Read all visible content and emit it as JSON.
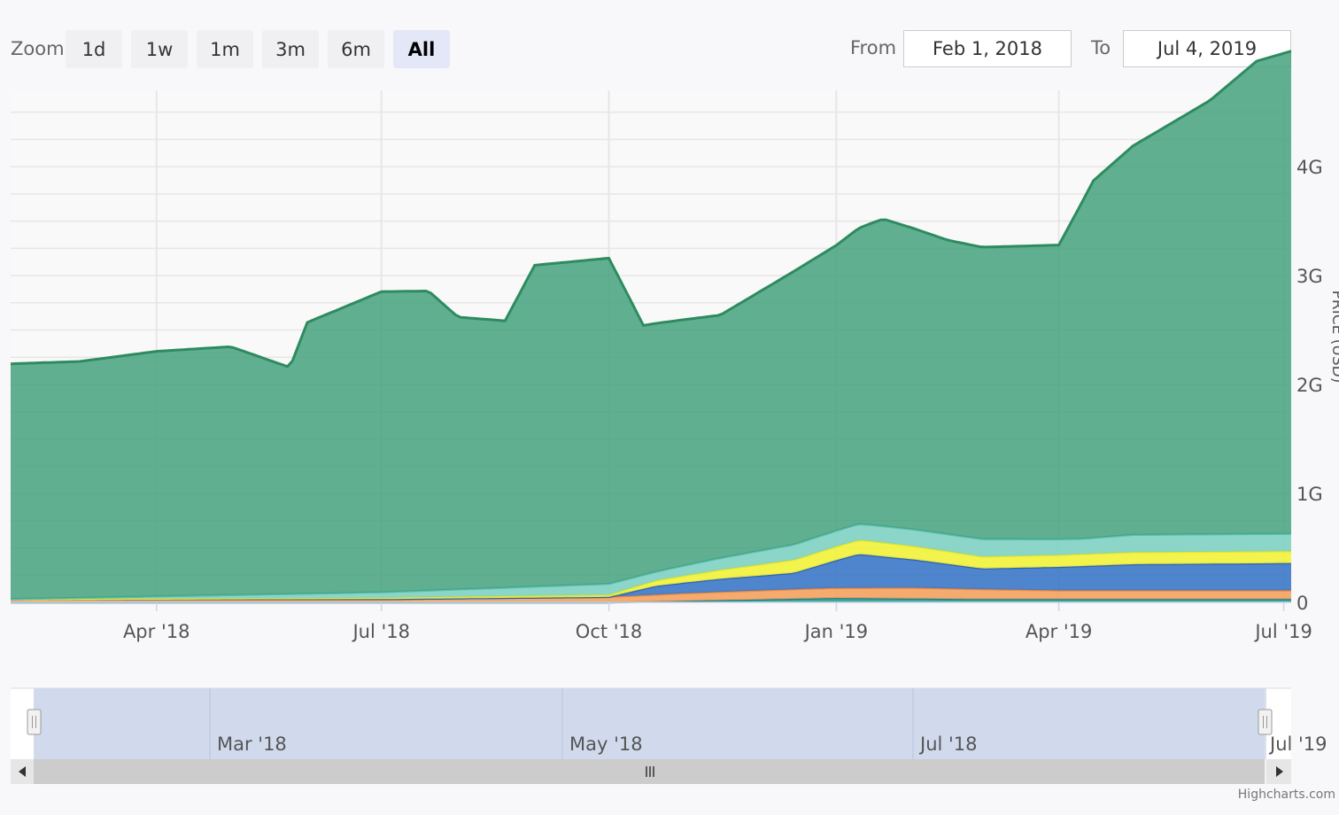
{
  "range_selector": {
    "zoom_label": "Zoom",
    "buttons": [
      "1d",
      "1w",
      "1m",
      "3m",
      "6m",
      "All"
    ],
    "active": "All",
    "from_label": "From",
    "from_value": "Feb 1, 2018",
    "to_label": "To",
    "to_value": "Jul 4, 2019"
  },
  "credits": "Highcharts.com",
  "navigator": {
    "tick_labels": [
      "Mar '18",
      "May '18",
      "Jul '18",
      "Jul '19"
    ]
  },
  "chart_data": {
    "type": "area",
    "stacked": true,
    "ylabel": "PRICE (USD)",
    "ylim": [
      0,
      4700000000
    ],
    "yticks": [
      "0",
      "1G",
      "2G",
      "3G",
      "4G"
    ],
    "ytick_values": [
      0,
      1000000000,
      2000000000,
      3000000000,
      4000000000
    ],
    "xlim": [
      "2018-02-01",
      "2019-07-04"
    ],
    "xticks": [
      {
        "date": "2018-04-01",
        "label": "Apr '18"
      },
      {
        "date": "2018-07-01",
        "label": "Jul '18"
      },
      {
        "date": "2018-10-01",
        "label": "Oct '18"
      },
      {
        "date": "2019-01-01",
        "label": "Jan '19"
      },
      {
        "date": "2019-04-01",
        "label": "Apr '19"
      },
      {
        "date": "2019-07-01",
        "label": "Jul '19"
      }
    ],
    "colors": {
      "series_1": "#2a9d8f",
      "series_2": "#f4a261",
      "series_3": "#3b78c8",
      "series_4": "#f2f23a",
      "series_5": "#7fd1c3",
      "series_6": "#3f9f7a"
    },
    "series": [
      {
        "values": [
          [
            "2018-02-01",
            0.0
          ],
          [
            "2018-10-01",
            0.0
          ],
          [
            "2018-11-15",
            0.02
          ],
          [
            "2019-01-01",
            0.04
          ],
          [
            "2019-03-01",
            0.03
          ],
          [
            "2019-07-04",
            0.03
          ]
        ]
      },
      {
        "values": [
          [
            "2018-02-01",
            0.03
          ],
          [
            "2018-07-01",
            0.03
          ],
          [
            "2018-10-01",
            0.05
          ],
          [
            "2018-11-01",
            0.07
          ],
          [
            "2018-12-20",
            0.09
          ],
          [
            "2019-02-01",
            0.1
          ],
          [
            "2019-04-01",
            0.08
          ],
          [
            "2019-07-04",
            0.08
          ]
        ]
      },
      {
        "values": [
          [
            "2018-02-01",
            0.0
          ],
          [
            "2018-10-01",
            0.0
          ],
          [
            "2018-10-20",
            0.08
          ],
          [
            "2018-11-15",
            0.12
          ],
          [
            "2018-12-15",
            0.15
          ],
          [
            "2019-01-10",
            0.31
          ],
          [
            "2019-02-01",
            0.26
          ],
          [
            "2019-03-01",
            0.19
          ],
          [
            "2019-05-01",
            0.24
          ],
          [
            "2019-07-04",
            0.25
          ]
        ]
      },
      {
        "values": [
          [
            "2018-02-01",
            0.0
          ],
          [
            "2018-10-01",
            0.02
          ],
          [
            "2018-10-20",
            0.05
          ],
          [
            "2018-12-15",
            0.12
          ],
          [
            "2019-01-15",
            0.13
          ],
          [
            "2019-03-01",
            0.11
          ],
          [
            "2019-05-01",
            0.11
          ],
          [
            "2019-07-04",
            0.11
          ]
        ]
      },
      {
        "values": [
          [
            "2018-02-01",
            0.0
          ],
          [
            "2018-07-01",
            0.05
          ],
          [
            "2018-10-01",
            0.1
          ],
          [
            "2018-10-20",
            0.08
          ],
          [
            "2018-12-15",
            0.14
          ],
          [
            "2019-01-20",
            0.15
          ],
          [
            "2019-03-01",
            0.16
          ],
          [
            "2019-04-10",
            0.14
          ],
          [
            "2019-05-01",
            0.16
          ],
          [
            "2019-07-04",
            0.16
          ]
        ]
      },
      {
        "values": [
          [
            "2018-02-01",
            2.16
          ],
          [
            "2018-03-01",
            2.17
          ],
          [
            "2018-04-01",
            2.25
          ],
          [
            "2018-05-01",
            2.28
          ],
          [
            "2018-05-25",
            2.08
          ],
          [
            "2018-06-01",
            2.49
          ],
          [
            "2018-07-01",
            2.76
          ],
          [
            "2018-07-20",
            2.75
          ],
          [
            "2018-08-01",
            2.5
          ],
          [
            "2018-08-20",
            2.45
          ],
          [
            "2018-09-01",
            2.95
          ],
          [
            "2018-10-01",
            2.99
          ],
          [
            "2018-10-15",
            2.29
          ],
          [
            "2018-11-15",
            2.23
          ],
          [
            "2018-12-15",
            2.51
          ],
          [
            "2019-01-01",
            2.62
          ],
          [
            "2019-01-20",
            2.82
          ],
          [
            "2019-02-15",
            2.7
          ],
          [
            "2019-03-01",
            2.68
          ],
          [
            "2019-04-01",
            2.7
          ],
          [
            "2019-04-15",
            3.28
          ],
          [
            "2019-05-01",
            3.57
          ],
          [
            "2019-06-01",
            3.98
          ],
          [
            "2019-06-20",
            4.34
          ],
          [
            "2019-07-04",
            4.43
          ]
        ]
      }
    ]
  }
}
